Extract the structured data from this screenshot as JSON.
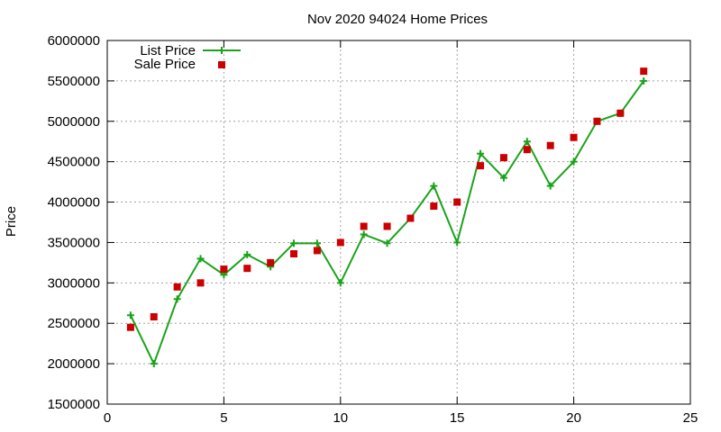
{
  "chart_data": {
    "type": "line",
    "title": "Nov 2020 94024 Home Prices",
    "xlabel": "",
    "ylabel": "Price",
    "xlim": [
      0,
      25
    ],
    "ylim": [
      1500000,
      6000000
    ],
    "xticks": [
      0,
      5,
      10,
      15,
      20,
      25
    ],
    "yticks": [
      1500000,
      2000000,
      2500000,
      3000000,
      3500000,
      4000000,
      4500000,
      5000000,
      5500000,
      6000000
    ],
    "grid": true,
    "legend_position": "top-left",
    "series": [
      {
        "name": "List Price",
        "style": "line+cross",
        "color": "#1aa31a",
        "x": [
          1,
          2,
          3,
          4,
          5,
          6,
          7,
          8,
          9,
          10,
          11,
          12,
          13,
          14,
          15,
          16,
          17,
          18,
          19,
          20,
          21,
          22,
          23
        ],
        "y": [
          2600000,
          2000000,
          2800000,
          3300000,
          3100000,
          3350000,
          3200000,
          3490000,
          3490000,
          3000000,
          3600000,
          3490000,
          3800000,
          4200000,
          3500000,
          4600000,
          4300000,
          4750000,
          4200000,
          4500000,
          5000000,
          5100000,
          5500000
        ]
      },
      {
        "name": "Sale Price",
        "style": "square-marker",
        "color": "#cc0000",
        "x": [
          1,
          2,
          3,
          4,
          5,
          6,
          7,
          8,
          9,
          10,
          11,
          12,
          13,
          14,
          15,
          16,
          17,
          18,
          19,
          20,
          21,
          22,
          23
        ],
        "y": [
          2450000,
          2580000,
          2950000,
          3000000,
          3170000,
          3180000,
          3250000,
          3360000,
          3400000,
          3500000,
          3700000,
          3700000,
          3800000,
          3950000,
          4000000,
          4450000,
          4550000,
          4650000,
          4700000,
          4800000,
          5000000,
          5100000,
          5620000
        ]
      }
    ]
  }
}
